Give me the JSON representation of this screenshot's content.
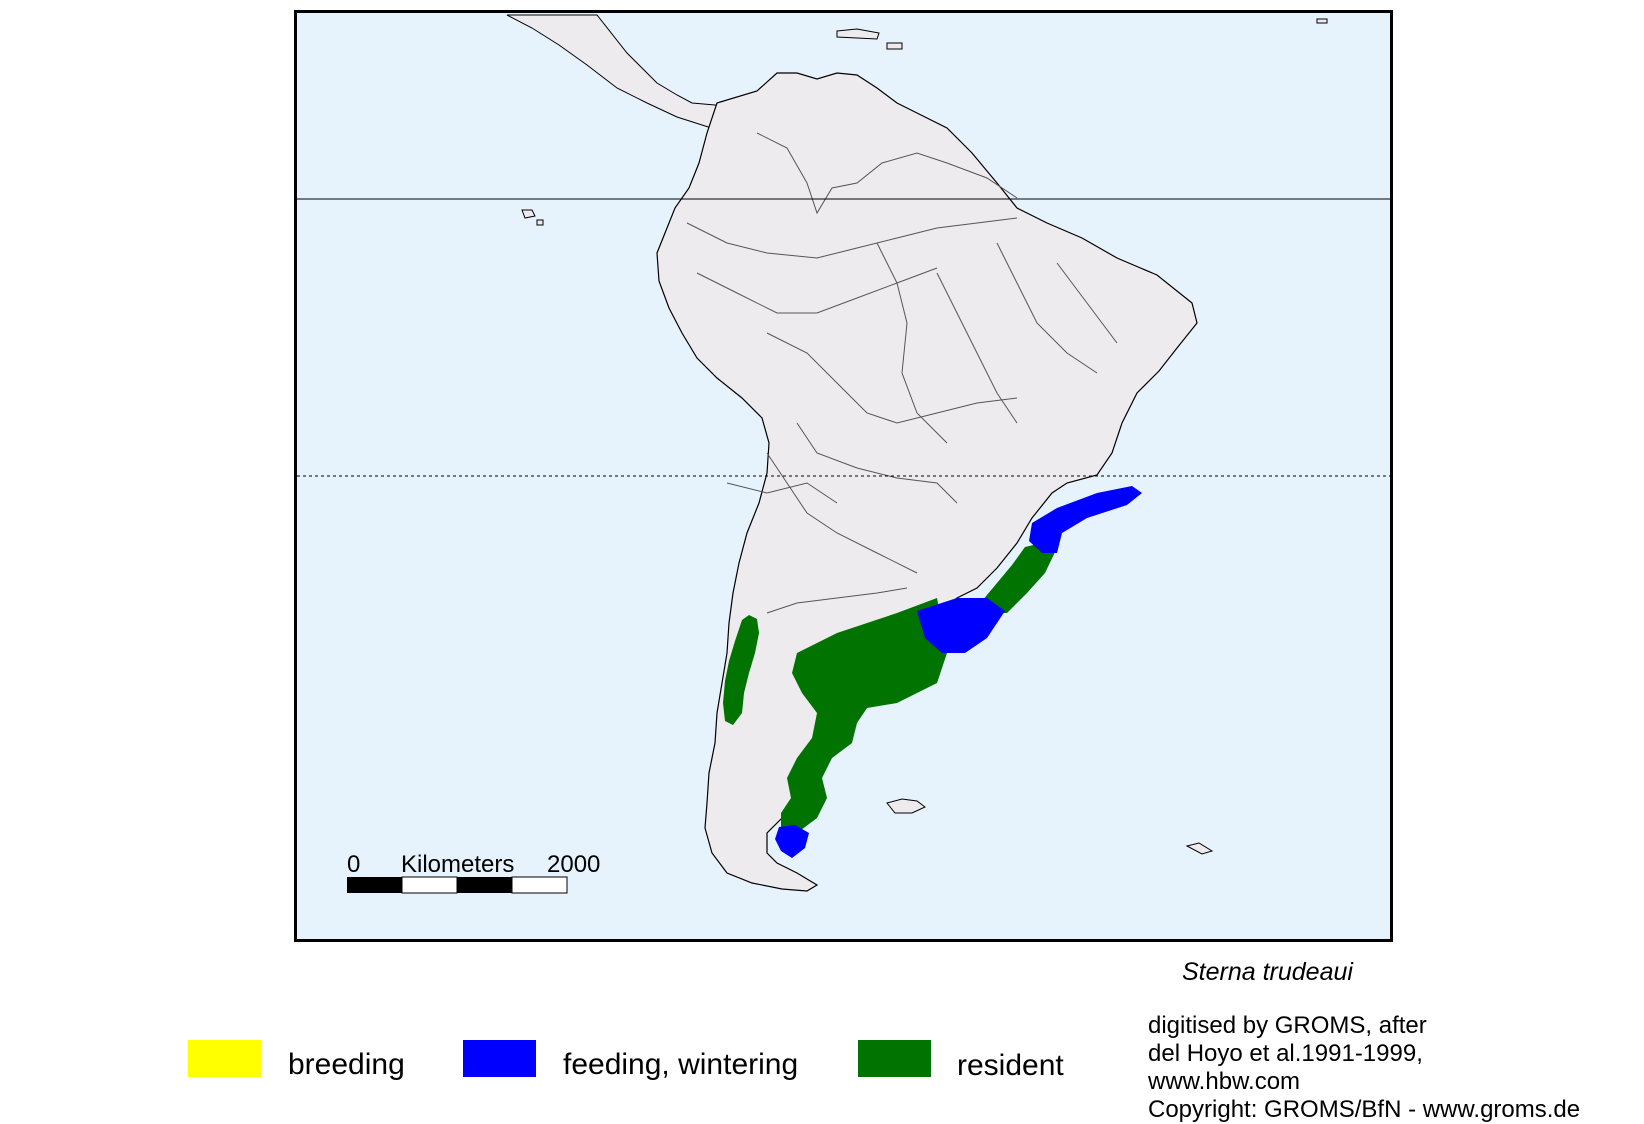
{
  "map": {
    "species": "Sterna trudeaui",
    "scale_bar": {
      "zero": "0",
      "unit": "Kilometers",
      "max": "2000"
    },
    "colors": {
      "ocean": "#e6f2fc",
      "land": "#eeebef",
      "breeding": "#ffff00",
      "feeding_wintering": "#0000ff",
      "resident": "#007300"
    }
  },
  "legend": [
    {
      "key": "breeding",
      "label": "breeding",
      "color": "#ffff00"
    },
    {
      "key": "feeding_wintering",
      "label": "feeding, wintering",
      "color": "#0000ff"
    },
    {
      "key": "resident",
      "label": "resident",
      "color": "#007300"
    }
  ],
  "credits": [
    "digitised by GROMS, after",
    "del Hoyo et al.1991-1999,",
    "www.hbw.com",
    "Copyright: GROMS/BfN - www.groms.de"
  ]
}
